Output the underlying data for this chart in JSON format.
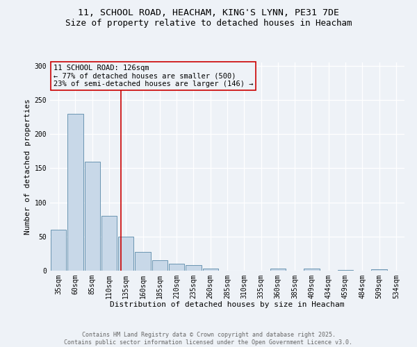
{
  "title1": "11, SCHOOL ROAD, HEACHAM, KING'S LYNN, PE31 7DE",
  "title2": "Size of property relative to detached houses in Heacham",
  "xlabel": "Distribution of detached houses by size in Heacham",
  "ylabel": "Number of detached properties",
  "categories": [
    "35sqm",
    "60sqm",
    "85sqm",
    "110sqm",
    "135sqm",
    "160sqm",
    "185sqm",
    "210sqm",
    "235sqm",
    "260sqm",
    "285sqm",
    "310sqm",
    "335sqm",
    "360sqm",
    "385sqm",
    "409sqm",
    "434sqm",
    "459sqm",
    "484sqm",
    "509sqm",
    "534sqm"
  ],
  "values": [
    60,
    230,
    160,
    80,
    50,
    27,
    15,
    10,
    8,
    3,
    0,
    0,
    0,
    3,
    0,
    3,
    0,
    1,
    0,
    2,
    0
  ],
  "bar_color": "#c8d8e8",
  "bar_edge_color": "#5888a8",
  "vline_x_index": 3.72,
  "vline_color": "#cc0000",
  "annotation_text": "11 SCHOOL ROAD: 126sqm\n← 77% of detached houses are smaller (500)\n23% of semi-detached houses are larger (146) →",
  "ylim": [
    0,
    305
  ],
  "yticks": [
    0,
    50,
    100,
    150,
    200,
    250,
    300
  ],
  "footer1": "Contains HM Land Registry data © Crown copyright and database right 2025.",
  "footer2": "Contains public sector information licensed under the Open Government Licence v3.0.",
  "bg_color": "#eef2f7",
  "grid_color": "#ffffff",
  "title1_fontsize": 9.5,
  "title2_fontsize": 9,
  "axis_label_fontsize": 8,
  "tick_fontsize": 7,
  "annotation_fontsize": 7.5,
  "footer_fontsize": 6
}
